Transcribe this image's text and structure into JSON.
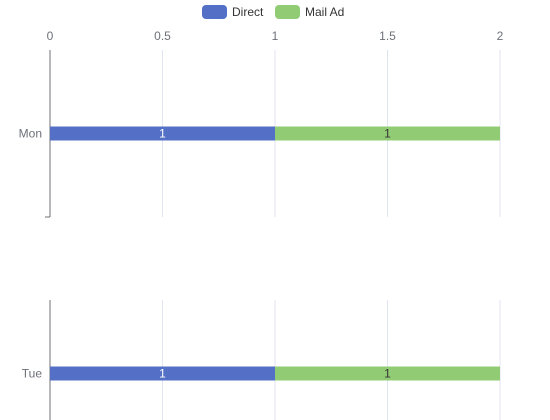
{
  "legend": {
    "direct_label": "Direct",
    "mail_label": "Mail Ad"
  },
  "chart_data": {
    "type": "bar",
    "orientation": "horizontal",
    "stacked": true,
    "categories": [
      "Mon",
      "Tue"
    ],
    "series": [
      {
        "name": "Direct",
        "values": [
          1,
          1
        ],
        "color": "#5470c6"
      },
      {
        "name": "Mail Ad",
        "values": [
          1,
          1
        ],
        "color": "#91cc75"
      }
    ],
    "x_ticks": [
      "0",
      "0.5",
      "1",
      "1.5",
      "2"
    ],
    "xlim": [
      0,
      2
    ],
    "grid": true,
    "legend_position": "top-center",
    "show_data_labels": true
  }
}
